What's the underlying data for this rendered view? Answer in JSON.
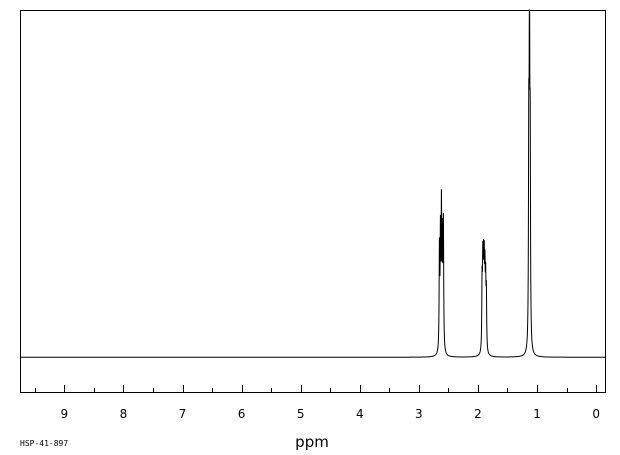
{
  "chart_data": {
    "type": "line",
    "title": "",
    "xlabel": "ppm",
    "ylabel": "",
    "xlim": [
      9.75,
      -0.15
    ],
    "x_reversed": true,
    "ylim": [
      -0.1,
      1.0
    ],
    "grid": false,
    "xticks": [
      9,
      8,
      7,
      6,
      5,
      4,
      3,
      2,
      1,
      0
    ],
    "xtick_labels": [
      "9",
      "8",
      "7",
      "6",
      "5",
      "4",
      "3",
      "2",
      "1",
      "0"
    ],
    "minor_tick_step": 0.5,
    "baseline": 0.0,
    "peaks": [
      {
        "ppm": 2.652,
        "height": 0.29
      },
      {
        "ppm": 2.635,
        "height": 0.32
      },
      {
        "ppm": 2.618,
        "height": 0.4
      },
      {
        "ppm": 2.601,
        "height": 0.3
      },
      {
        "ppm": 2.585,
        "height": 0.36
      },
      {
        "ppm": 1.93,
        "height": 0.19
      },
      {
        "ppm": 1.918,
        "height": 0.23
      },
      {
        "ppm": 1.906,
        "height": 0.22
      },
      {
        "ppm": 1.894,
        "height": 0.22
      },
      {
        "ppm": 1.882,
        "height": 0.2
      },
      {
        "ppm": 1.87,
        "height": 0.18
      },
      {
        "ppm": 1.858,
        "height": 0.16
      },
      {
        "ppm": 1.14,
        "height": 0.56
      },
      {
        "ppm": 1.128,
        "height": 0.98
      },
      {
        "ppm": 1.116,
        "height": 0.53
      }
    ]
  },
  "footer": {
    "code": "HSP-41-897"
  }
}
